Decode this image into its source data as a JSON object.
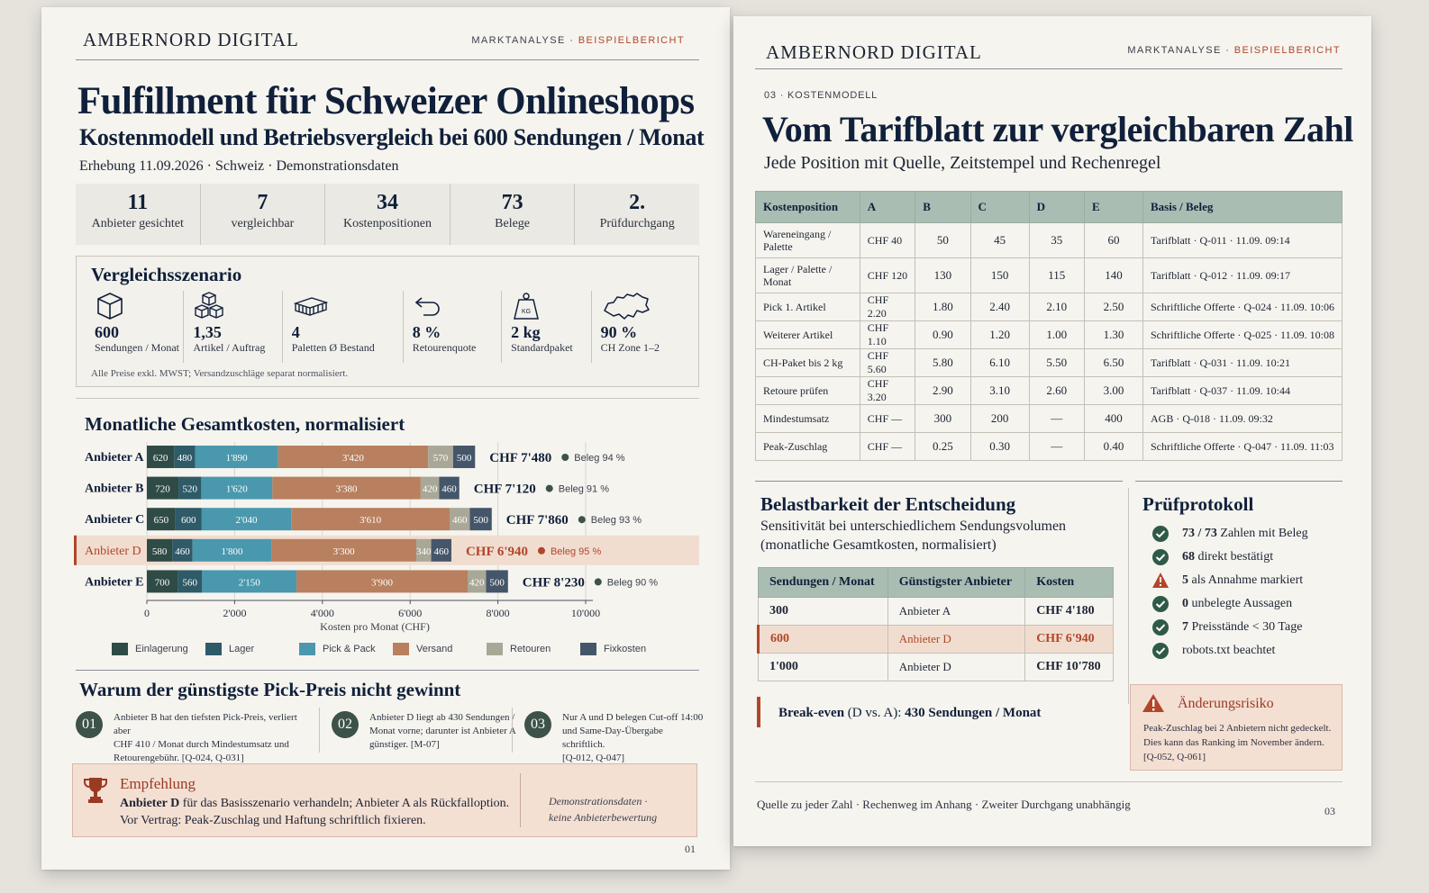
{
  "page1": {
    "brand": "AMBERNORD DIGITAL",
    "kicker_main": "MARKTANALYSE",
    "kicker_sep": "·",
    "kicker_accent": "BEISPIELBERICHT",
    "title": "Fulfillment für Schweizer Onlineshops",
    "subtitle": "Kostenmodell und Betriebsvergleich bei 600 Sendungen / Monat",
    "meta": "Erhebung 11.09.2026  ·  Schweiz  ·  Demonstrationsdaten",
    "stats": [
      {
        "num": "11",
        "label": "Anbieter gesichtet"
      },
      {
        "num": "7",
        "label": "vergleichbar"
      },
      {
        "num": "34",
        "label": "Kostenpositionen"
      },
      {
        "num": "73",
        "label": "Belege"
      },
      {
        "num": "2.",
        "label": "Prüfdurchgang"
      }
    ],
    "scenario": {
      "title": "Vergleichsszenario",
      "items": [
        {
          "icon": "box-icon",
          "value": "600",
          "label": "Sendungen / Monat"
        },
        {
          "icon": "boxes-icon",
          "value": "1,35",
          "label": "Artikel / Auftrag"
        },
        {
          "icon": "pallet-icon",
          "value": "4",
          "label": "Paletten Ø Bestand"
        },
        {
          "icon": "return-arrow-icon",
          "value": "8 %",
          "label": "Retourenquote"
        },
        {
          "icon": "weight-icon",
          "value": "2 kg",
          "label": "Standardpaket"
        },
        {
          "icon": "swiss-map-icon",
          "value": "90 %",
          "label": "CH Zone 1–2"
        }
      ],
      "weight_badge": "KG",
      "note": "Alle Preise exkl. MWST; Versandzuschläge separat normalisiert."
    },
    "chart_title": "Monatliche Gesamtkosten, normalisiert",
    "reasons_title": "Warum der günstigste Pick-Preis nicht gewinnt",
    "reasons": [
      {
        "num": "01",
        "lines": [
          "Anbieter B hat den tiefsten Pick-Preis, verliert aber",
          "CHF 410 / Monat durch Mindestumsatz und",
          "Retourengebühr.  [Q-024, Q-031]"
        ]
      },
      {
        "num": "02",
        "lines": [
          "Anbieter D liegt ab 430 Sendungen /",
          "Monat vorne; darunter ist Anbieter A",
          "günstiger.  [M-07]"
        ]
      },
      {
        "num": "03",
        "lines": [
          "Nur A und D belegen Cut-off 14:00",
          "und Same-Day-Übergabe schriftlich.",
          "[Q-012, Q-047]"
        ]
      }
    ],
    "recommendation": {
      "title": "Empfehlung",
      "line1_bold": "Anbieter D",
      "line1_rest": " für das Basisszenario verhandeln; Anbieter A als Rückfalloption.",
      "line2": "Vor Vertrag:  Peak-Zuschlag und Haftung schriftlich fixieren.",
      "side1": "Demonstrationsdaten  ·",
      "side2": "keine Anbieterbewertung"
    },
    "page_number": "01"
  },
  "chart_data": {
    "type": "bar",
    "orientation": "horizontal-stacked",
    "title": "Monatliche Gesamtkosten, normalisiert",
    "xlabel": "Kosten pro Monat (CHF)",
    "xlim": [
      0,
      10000
    ],
    "xticks": [
      "0",
      "2'000",
      "4'000",
      "6'000",
      "8'000",
      "10'000"
    ],
    "categories": [
      "Anbieter A",
      "Anbieter B",
      "Anbieter C",
      "Anbieter D",
      "Anbieter E"
    ],
    "highlight": "Anbieter D",
    "series": [
      {
        "name": "Einlagerung",
        "color": "#2f4b45",
        "values": [
          620,
          720,
          650,
          580,
          700
        ],
        "labels": [
          "620",
          "720",
          "650",
          "580",
          "700"
        ]
      },
      {
        "name": "Lager",
        "color": "#2f5a68",
        "values": [
          480,
          520,
          600,
          460,
          560
        ],
        "labels": [
          "480",
          "520",
          "600",
          "460",
          "560"
        ]
      },
      {
        "name": "Pick & Pack",
        "color": "#4a98ad",
        "values": [
          1890,
          1620,
          2040,
          1800,
          2150
        ],
        "labels": [
          "1'890",
          "1'620",
          "2'040",
          "1'800",
          "2'150"
        ]
      },
      {
        "name": "Versand",
        "color": "#b8805e",
        "values": [
          3420,
          3380,
          3610,
          3300,
          3900
        ],
        "labels": [
          "3'420",
          "3'380",
          "3'610",
          "3'300",
          "3'900"
        ]
      },
      {
        "name": "Retouren",
        "color": "#a9a797",
        "values": [
          570,
          420,
          460,
          340,
          420
        ],
        "labels": [
          "570",
          "420",
          "460",
          "340",
          "420"
        ]
      },
      {
        "name": "Fixkosten",
        "color": "#45566a",
        "values": [
          500,
          460,
          500,
          460,
          500
        ],
        "labels": [
          "500",
          "460",
          "500",
          "460",
          "500"
        ]
      }
    ],
    "totals": [
      "CHF 7'480",
      "CHF 7'120",
      "CHF 7'860",
      "CHF 6'940",
      "CHF 8'230"
    ],
    "evidence": [
      "Beleg 94 %",
      "Beleg 91 %",
      "Beleg 93 %",
      "Beleg 95 %",
      "Beleg 90 %"
    ]
  },
  "colors": {
    "accent": "#b1462a",
    "navy": "#10203a",
    "table_header": "#a9bdb2",
    "highlight_row": "#f1ddd0",
    "check_green": "#2f5a48",
    "warning_red": "#b1462a"
  },
  "page2": {
    "brand": "AMBERNORD DIGITAL",
    "kicker_main": "MARKTANALYSE",
    "kicker_sep": "·",
    "kicker_accent": "BEISPIELBERICHT",
    "section_label": "03 · KOSTENMODELL",
    "title": "Vom Tarifblatt zur vergleichbaren Zahl",
    "subtitle": "Jede Position mit Quelle, Zeitstempel und Rechenregel",
    "table": {
      "headers": [
        "Kostenposition",
        "A",
        "B",
        "C",
        "D",
        "E",
        "Basis / Beleg"
      ],
      "rows": [
        [
          "Wareneingang / Palette",
          "CHF 40",
          "50",
          "45",
          "35",
          "60",
          "Tarifblatt  ·  Q-011 · 11.09. 09:14"
        ],
        [
          "Lager / Palette / Monat",
          "CHF 120",
          "130",
          "150",
          "115",
          "140",
          "Tarifblatt  ·  Q-012 · 11.09. 09:17"
        ],
        [
          "Pick 1. Artikel",
          "CHF 2.20",
          "1.80",
          "2.40",
          "2.10",
          "2.50",
          "Schriftliche Offerte  ·  Q-024 · 11.09. 10:06"
        ],
        [
          "Weiterer Artikel",
          "CHF 1.10",
          "0.90",
          "1.20",
          "1.00",
          "1.30",
          "Schriftliche Offerte  ·  Q-025 · 11.09. 10:08"
        ],
        [
          "CH-Paket bis 2 kg",
          "CHF 5.60",
          "5.80",
          "6.10",
          "5.50",
          "6.50",
          "Tarifblatt  ·  Q-031 · 11.09. 10:21"
        ],
        [
          "Retoure prüfen",
          "CHF 3.20",
          "2.90",
          "3.10",
          "2.60",
          "3.00",
          "Tarifblatt  ·  Q-037 · 11.09. 10:44"
        ],
        [
          "Mindestumsatz",
          "CHF —",
          "300",
          "200",
          "—",
          "400",
          "AGB  ·  Q-018 · 11.09. 09:32"
        ],
        [
          "Peak-Zuschlag",
          "CHF —",
          "0.25",
          "0.30",
          "—",
          "0.40",
          "Schriftliche Offerte  ·  Q-047 · 11.09. 11:03"
        ]
      ]
    },
    "resilience": {
      "title": "Belastbarkeit der Entscheidung",
      "sub1": "Sensitivität bei unterschiedlichem Sendungsvolumen",
      "sub2": "(monatliche Gesamtkosten, normalisiert)",
      "headers": [
        "Sendungen / Monat",
        "Günstigster Anbieter",
        "Kosten"
      ],
      "rows": [
        [
          "300",
          "Anbieter A",
          "CHF 4'180"
        ],
        [
          "600",
          "Anbieter D",
          "CHF 6'940"
        ],
        [
          "1'000",
          "Anbieter D",
          "CHF 10'780"
        ]
      ],
      "highlight_row": 1,
      "breakeven_label": "Break-even",
      "breakeven_paren": "(D vs. A):",
      "breakeven_value": "430 Sendungen / Monat"
    },
    "protocol": {
      "title": "Prüfprotokoll",
      "items": [
        {
          "icon": "check-icon",
          "bold": "73 / 73",
          "rest": "Zahlen mit Beleg"
        },
        {
          "icon": "check-icon",
          "bold": "68",
          "rest": "direkt bestätigt"
        },
        {
          "icon": "warning-icon",
          "bold": "5",
          "rest": "als Annahme markiert"
        },
        {
          "icon": "check-icon",
          "bold": "0",
          "rest": "unbelegte Aussagen"
        },
        {
          "icon": "check-icon",
          "bold": "7",
          "rest": "Preisstände < 30 Tage"
        },
        {
          "icon": "check-icon",
          "bold": "",
          "rest": "robots.txt beachtet"
        }
      ]
    },
    "risk": {
      "title": "Änderungsrisiko",
      "lines": [
        "Peak-Zuschlag bei 2 Anbietern nicht gedeckelt.",
        "Dies kann das Ranking im November ändern.",
        "[Q-052, Q-061]"
      ]
    },
    "footer": "Quelle zu jeder Zahl  ·  Rechenweg im Anhang  ·  Zweiter Durchgang unabhängig",
    "page_number": "03"
  }
}
